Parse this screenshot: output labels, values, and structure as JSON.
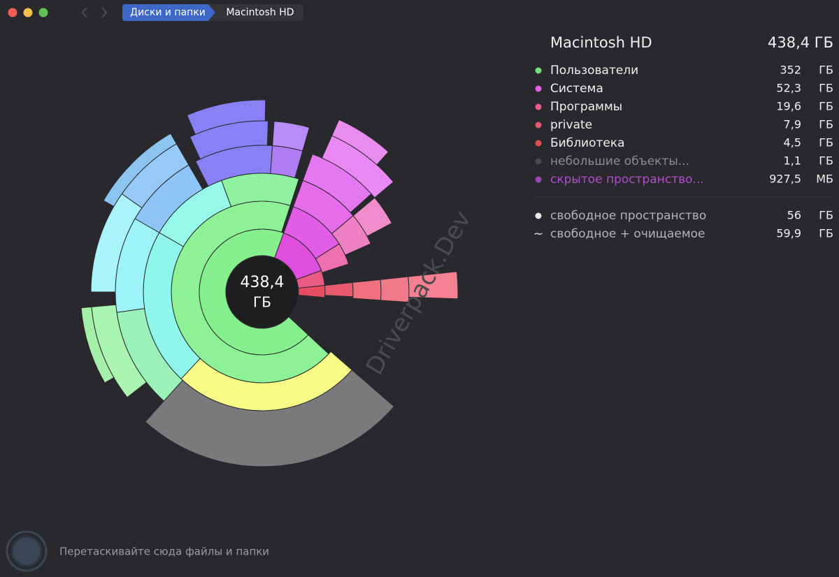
{
  "window": {
    "breadcrumbs": [
      "Диски и папки",
      "Macintosh HD"
    ]
  },
  "center": {
    "value": "438,4",
    "unit": "ГБ"
  },
  "panel": {
    "title": "Macintosh HD",
    "total": "438,4 ГБ",
    "items": [
      {
        "name": "Пользователи",
        "size": "352",
        "unit": "ГБ",
        "color": "#6fe07c"
      },
      {
        "name": "Система",
        "size": "52,3",
        "unit": "ГБ",
        "color": "#e25ce6"
      },
      {
        "name": "Программы",
        "size": "19,6",
        "unit": "ГБ",
        "color": "#ea5a86"
      },
      {
        "name": "private",
        "size": "7,9",
        "unit": "ГБ",
        "color": "#e8566a"
      },
      {
        "name": "Библиотека",
        "size": "4,5",
        "unit": "ГБ",
        "color": "#e05050"
      },
      {
        "name": "небольшие объекты...",
        "size": "1,1",
        "unit": "ГБ",
        "color": "#4a4a4e"
      },
      {
        "name": "скрытое пространство...",
        "size": "927,5",
        "unit": "МБ",
        "color": "#9b45b5"
      }
    ],
    "free": [
      {
        "marker": null,
        "name": "свободное пространство",
        "size": "56",
        "unit": "ГБ",
        "color": "#e6e6e6"
      },
      {
        "marker": "~",
        "name": "свободное + очищаемое",
        "size": "59,9",
        "unit": "ГБ",
        "color": "#e6e6e6"
      }
    ]
  },
  "watermark": "Driverpack.Dev",
  "footer": "Перетаскивайте сюда файлы и папки"
}
